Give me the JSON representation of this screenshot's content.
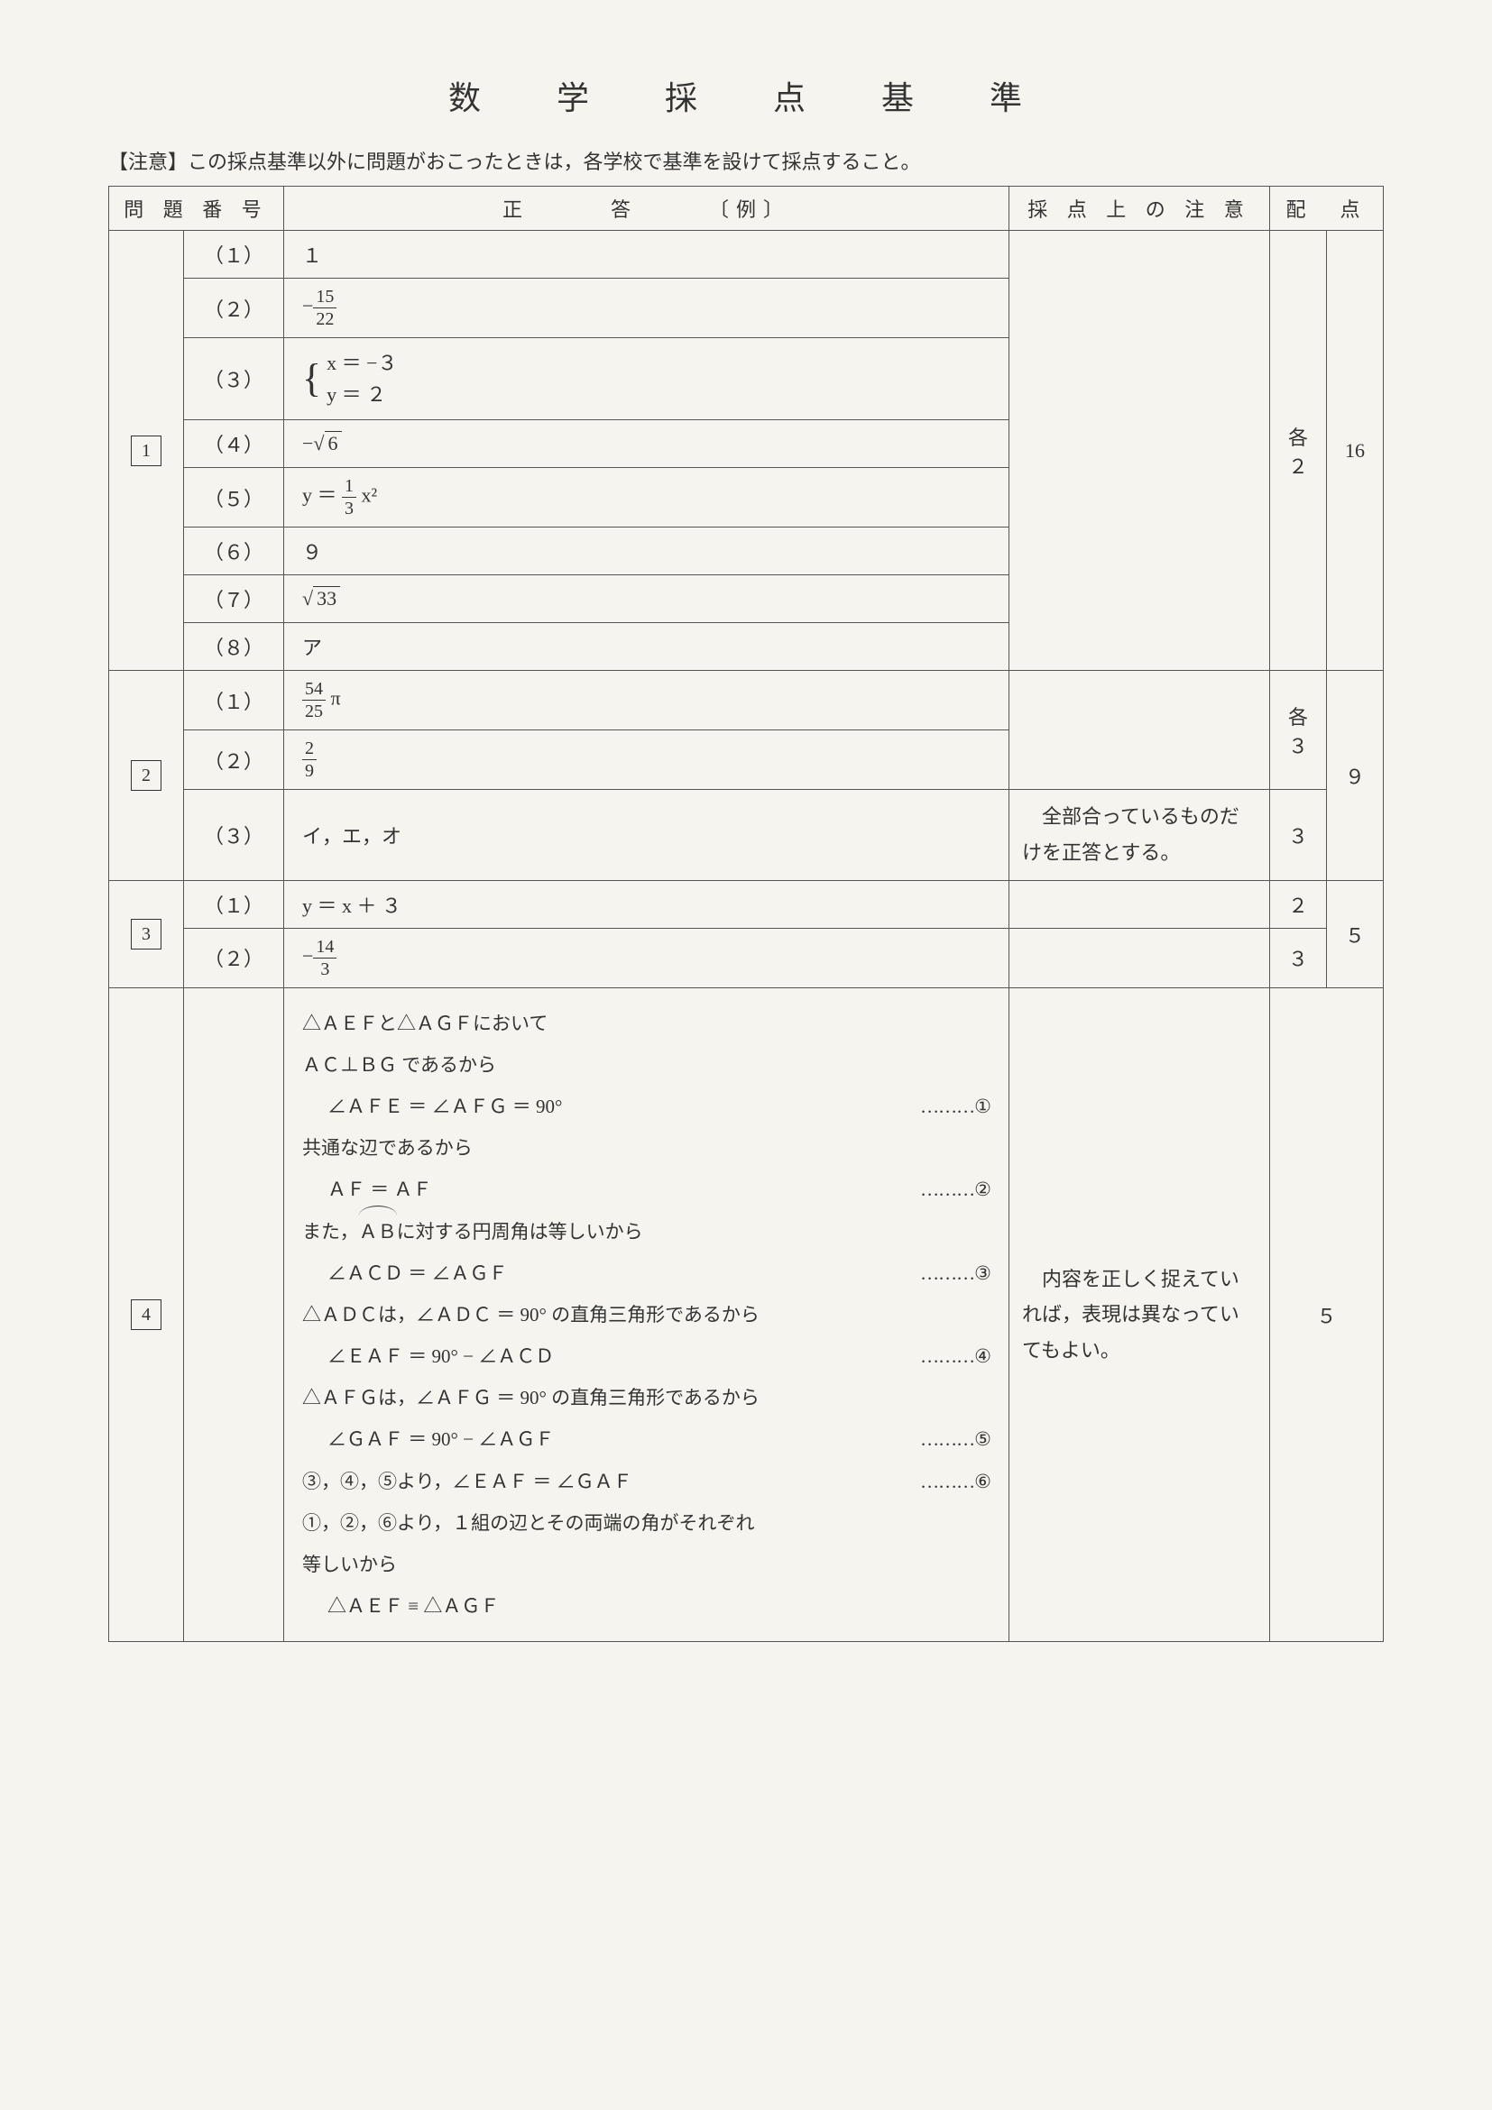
{
  "title": "数　学　採　点　基　準",
  "notice": "【注意】この採点基準以外に問題がおこったときは，各学校で基準を設けて採点すること。",
  "headers": {
    "question_no": "問 題 番 号",
    "answer": "正　　　答　　　〔例〕",
    "note": "採 点 上 の 注 意",
    "points": "配　点"
  },
  "q1": {
    "num": "1",
    "subs": [
      "（１）",
      "（２）",
      "（３）",
      "（４）",
      "（５）",
      "（６）",
      "（７）",
      "（８）"
    ],
    "a1": "１",
    "a2": {
      "neg": "−",
      "num": "15",
      "den": "22"
    },
    "a3": {
      "line1": "x ＝ −３",
      "line2": "y ＝ ２"
    },
    "a4": {
      "neg": "−",
      "rad": "6"
    },
    "a5": {
      "pre": "y ＝ ",
      "num": "1",
      "den": "3",
      "post": " x²"
    },
    "a6": "９",
    "a7": {
      "rad": "33"
    },
    "a8": "ア",
    "pts_label": "各",
    "pts_each": "２",
    "pts_total": "16"
  },
  "q2": {
    "num": "2",
    "subs": [
      "（１）",
      "（２）",
      "（３）"
    ],
    "a1": {
      "num": "54",
      "den": "25",
      "post": " π"
    },
    "a2": {
      "num": "2",
      "den": "9"
    },
    "a3": "イ，エ，オ",
    "note3": "　全部合っているものだけを正答とする。",
    "pts_label": "各",
    "pts_each12": "３",
    "pts3": "３",
    "pts_total": "９"
  },
  "q3": {
    "num": "3",
    "subs": [
      "（１）",
      "（２）"
    ],
    "a1": "y ＝ x ＋ ３",
    "a2": {
      "neg": "−",
      "num": "14",
      "den": "3"
    },
    "pts1": "２",
    "pts2": "３",
    "pts_total": "５"
  },
  "q4": {
    "num": "4",
    "proof": {
      "l1": "△ＡＥＦと△ＡＧＦにおいて",
      "l2": "ＡＣ⊥ＢＧ であるから",
      "l3a": "∠ＡＦＥ ＝ ∠ＡＦＧ ＝ 90°",
      "l3b": "………①",
      "l4": "共通な辺であるから",
      "l5a": "ＡＦ ＝ ＡＦ",
      "l5b": "………②",
      "l6a_pre": "また，",
      "l6a_arc": "ＡＢ",
      "l6a_post": "に対する円周角は等しいから",
      "l7a": "∠ＡＣＤ ＝ ∠ＡＧＦ",
      "l7b": "………③",
      "l8": "△ＡＤＣは，∠ＡＤＣ ＝ 90° の直角三角形であるから",
      "l9a": "∠ＥＡＦ ＝ 90° − ∠ＡＣＤ",
      "l9b": "………④",
      "l10": "△ＡＦＧは，∠ＡＦＧ ＝ 90° の直角三角形であるから",
      "l11a": "∠ＧＡＦ ＝ 90° − ∠ＡＧＦ",
      "l11b": "………⑤",
      "l12a": "③，④，⑤より，∠ＥＡＦ ＝ ∠ＧＡＦ",
      "l12b": "………⑥",
      "l13": "①，②，⑥より，１組の辺とその両端の角がそれぞれ",
      "l14": "等しいから",
      "l15": "△ＡＥＦ ≡ △ＡＧＦ"
    },
    "note": "　内容を正しく捉えていれば，表現は異なっていてもよい。",
    "pts": "５"
  },
  "colors": {
    "page_bg": "#f6f4ee",
    "border": "#555555",
    "text": "#333333"
  }
}
